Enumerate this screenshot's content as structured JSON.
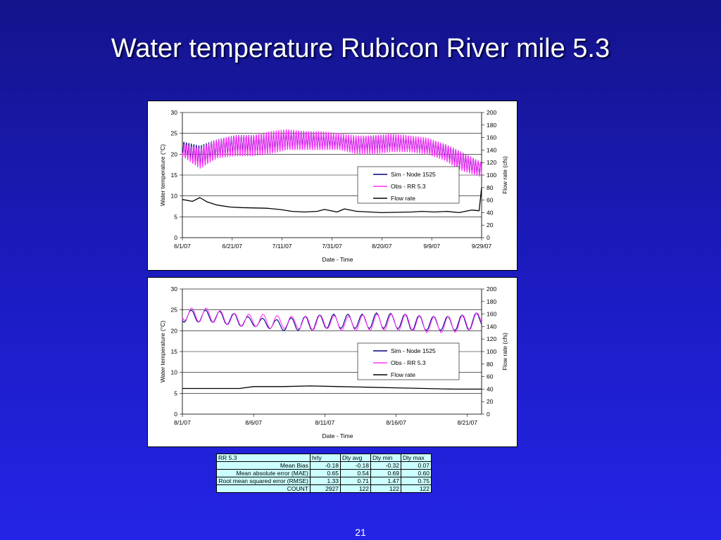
{
  "slide": {
    "title": "Water temperature Rubicon River mile 5.3",
    "page_number": "21",
    "background": "#1c1cc4"
  },
  "colors": {
    "sim": "#000080",
    "obs": "#ff33ff",
    "flow": "#000000"
  },
  "chart_data": [
    {
      "type": "line",
      "title": "",
      "xlabel": "Date - Time",
      "ylabel": "Water temperature (°C)",
      "y2label": "Flow rate (cfs)",
      "x_ticks": [
        "6/1/07",
        "6/21/07",
        "7/11/07",
        "7/31/07",
        "8/20/07",
        "9/9/07",
        "9/29/07"
      ],
      "xlim": [
        "2007-06-01",
        "2007-09-29"
      ],
      "ylim": [
        0,
        30
      ],
      "y_ticks": [
        0,
        5,
        10,
        15,
        20,
        25,
        30
      ],
      "y2lim": [
        0,
        200
      ],
      "y2_ticks": [
        0,
        20,
        40,
        60,
        80,
        100,
        120,
        140,
        160,
        180,
        200
      ],
      "grid": "horizontal",
      "legend_position": "center-right",
      "series": [
        {
          "name": "Sim - Node 1525",
          "axis": "left",
          "daily_min": {
            "x": [
              "2007-06-01",
              "2007-06-08",
              "2007-06-15",
              "2007-06-22",
              "2007-06-29",
              "2007-07-06",
              "2007-07-13",
              "2007-07-20",
              "2007-07-27",
              "2007-08-03",
              "2007-08-10",
              "2007-08-17",
              "2007-08-24",
              "2007-08-31",
              "2007-09-07",
              "2007-09-14",
              "2007-09-21",
              "2007-09-29"
            ],
            "y": [
              20.5,
              17.5,
              19.5,
              20.5,
              20.5,
              20.5,
              21.5,
              21.5,
              21.5,
              21.5,
              20.5,
              21.0,
              21.0,
              21.0,
              20.5,
              19.0,
              16.5,
              15.0
            ]
          },
          "daily_max": {
            "x": [
              "2007-06-01",
              "2007-06-08",
              "2007-06-15",
              "2007-06-22",
              "2007-06-29",
              "2007-07-06",
              "2007-07-13",
              "2007-07-20",
              "2007-07-27",
              "2007-08-03",
              "2007-08-10",
              "2007-08-17",
              "2007-08-24",
              "2007-08-31",
              "2007-09-07",
              "2007-09-14",
              "2007-09-21",
              "2007-09-29"
            ],
            "y": [
              23.0,
              22.0,
              23.5,
              24.5,
              24.5,
              25.0,
              25.5,
              25.5,
              25.0,
              24.5,
              24.0,
              24.5,
              24.5,
              24.0,
              23.5,
              22.5,
              20.5,
              18.0
            ]
          }
        },
        {
          "name": "Obs - RR 5.3",
          "axis": "left",
          "daily_min": {
            "x": [
              "2007-06-01",
              "2007-06-08",
              "2007-06-15",
              "2007-06-22",
              "2007-06-29",
              "2007-07-06",
              "2007-07-13",
              "2007-07-20",
              "2007-07-27",
              "2007-08-03",
              "2007-08-10",
              "2007-08-17",
              "2007-08-24",
              "2007-08-31",
              "2007-09-07",
              "2007-09-14",
              "2007-09-21",
              "2007-09-29"
            ],
            "y": [
              19.5,
              16.5,
              19.0,
              19.5,
              19.5,
              20.0,
              21.0,
              21.0,
              21.0,
              21.0,
              20.0,
              20.0,
              20.5,
              20.5,
              20.0,
              18.5,
              16.0,
              14.5
            ]
          },
          "daily_max": {
            "x": [
              "2007-06-01",
              "2007-06-08",
              "2007-06-15",
              "2007-06-22",
              "2007-06-29",
              "2007-07-06",
              "2007-07-13",
              "2007-07-20",
              "2007-07-27",
              "2007-08-03",
              "2007-08-10",
              "2007-08-17",
              "2007-08-24",
              "2007-08-31",
              "2007-09-07",
              "2007-09-14",
              "2007-09-21",
              "2007-09-29"
            ],
            "y": [
              22.5,
              21.5,
              23.5,
              24.5,
              24.5,
              25.5,
              26.0,
              25.5,
              25.5,
              25.0,
              24.5,
              24.5,
              25.0,
              24.5,
              24.0,
              22.5,
              20.5,
              18.0
            ]
          }
        },
        {
          "name": "Flow  rate",
          "axis": "right",
          "x": [
            "2007-06-01",
            "2007-06-05",
            "2007-06-08",
            "2007-06-11",
            "2007-06-15",
            "2007-06-20",
            "2007-06-25",
            "2007-07-05",
            "2007-07-10",
            "2007-07-15",
            "2007-07-20",
            "2007-07-25",
            "2007-07-28",
            "2007-08-02",
            "2007-08-05",
            "2007-08-10",
            "2007-08-20",
            "2007-09-01",
            "2007-09-05",
            "2007-09-10",
            "2007-09-15",
            "2007-09-20",
            "2007-09-25",
            "2007-09-28",
            "2007-09-29"
          ],
          "y": [
            61,
            58,
            64,
            57,
            52,
            49,
            48,
            47,
            45,
            42,
            41,
            42,
            45,
            41,
            46,
            42,
            40,
            41,
            42,
            41,
            42,
            40,
            44,
            43,
            80
          ]
        }
      ]
    },
    {
      "type": "line",
      "title": "",
      "xlabel": "Date - Time",
      "ylabel": "Water temperature (°C)",
      "y2label": "Flow rate (cfs)",
      "x_ticks": [
        "8/1/07",
        "8/6/07",
        "8/11/07",
        "8/16/07",
        "8/21/07"
      ],
      "xlim": [
        "2007-08-01",
        "2007-08-22"
      ],
      "ylim": [
        0,
        30
      ],
      "y_ticks": [
        0,
        5,
        10,
        15,
        20,
        25,
        30
      ],
      "y2lim": [
        0,
        200
      ],
      "y2_ticks": [
        0,
        20,
        40,
        60,
        80,
        100,
        120,
        140,
        160,
        180,
        200
      ],
      "grid": "horizontal",
      "legend_position": "center-right",
      "series": [
        {
          "name": "Sim - Node 1525",
          "axis": "left",
          "daily_min": {
            "x": [
              "2007-08-01",
              "2007-08-02",
              "2007-08-03",
              "2007-08-04",
              "2007-08-05",
              "2007-08-06",
              "2007-08-07",
              "2007-08-08",
              "2007-08-09",
              "2007-08-10",
              "2007-08-11",
              "2007-08-12",
              "2007-08-13",
              "2007-08-14",
              "2007-08-15",
              "2007-08-16",
              "2007-08-17",
              "2007-08-18",
              "2007-08-19",
              "2007-08-20",
              "2007-08-21",
              "2007-08-22"
            ],
            "y": [
              22.0,
              22.0,
              22.0,
              21.5,
              21.0,
              21.0,
              20.5,
              20.0,
              20.0,
              20.0,
              20.5,
              20.5,
              20.5,
              20.5,
              20.5,
              20.5,
              20.0,
              20.0,
              20.0,
              20.0,
              20.0,
              21.0
            ]
          },
          "daily_max": {
            "x": [
              "2007-08-01",
              "2007-08-02",
              "2007-08-03",
              "2007-08-04",
              "2007-08-05",
              "2007-08-06",
              "2007-08-07",
              "2007-08-08",
              "2007-08-09",
              "2007-08-10",
              "2007-08-11",
              "2007-08-12",
              "2007-08-13",
              "2007-08-14",
              "2007-08-15",
              "2007-08-16",
              "2007-08-17",
              "2007-08-18",
              "2007-08-19",
              "2007-08-20",
              "2007-08-21",
              "2007-08-22"
            ],
            "y": [
              25.0,
              25.0,
              25.0,
              24.5,
              24.0,
              23.0,
              23.0,
              22.5,
              23.5,
              23.5,
              24.0,
              24.0,
              24.0,
              24.0,
              24.5,
              24.0,
              24.0,
              23.5,
              23.5,
              23.5,
              24.0,
              24.5
            ]
          }
        },
        {
          "name": "Obs - RR 5.3",
          "axis": "left",
          "daily_min": {
            "x": [
              "2007-08-01",
              "2007-08-02",
              "2007-08-03",
              "2007-08-04",
              "2007-08-05",
              "2007-08-06",
              "2007-08-07",
              "2007-08-08",
              "2007-08-09",
              "2007-08-10",
              "2007-08-11",
              "2007-08-12",
              "2007-08-13",
              "2007-08-14",
              "2007-08-15",
              "2007-08-16",
              "2007-08-17",
              "2007-08-18",
              "2007-08-19",
              "2007-08-20",
              "2007-08-21",
              "2007-08-22"
            ],
            "y": [
              22.5,
              22.0,
              22.0,
              21.5,
              21.0,
              21.0,
              20.5,
              20.5,
              20.5,
              20.0,
              20.5,
              20.0,
              20.0,
              20.0,
              20.0,
              20.0,
              20.0,
              19.5,
              19.5,
              19.5,
              20.0,
              21.0
            ]
          },
          "daily_max": {
            "x": [
              "2007-08-01",
              "2007-08-02",
              "2007-08-03",
              "2007-08-04",
              "2007-08-05",
              "2007-08-06",
              "2007-08-07",
              "2007-08-08",
              "2007-08-09",
              "2007-08-10",
              "2007-08-11",
              "2007-08-12",
              "2007-08-13",
              "2007-08-14",
              "2007-08-15",
              "2007-08-16",
              "2007-08-17",
              "2007-08-18",
              "2007-08-19",
              "2007-08-20",
              "2007-08-21",
              "2007-08-22"
            ],
            "y": [
              25.5,
              25.5,
              25.5,
              24.5,
              24.0,
              24.0,
              24.0,
              23.5,
              23.5,
              23.5,
              24.0,
              23.5,
              23.5,
              24.0,
              24.0,
              24.0,
              24.0,
              23.5,
              23.5,
              23.5,
              24.0,
              24.5
            ]
          }
        },
        {
          "name": "Flow  rate",
          "axis": "right",
          "x": [
            "2007-08-01",
            "2007-08-05",
            "2007-08-06",
            "2007-08-08",
            "2007-08-10",
            "2007-08-12",
            "2007-08-14",
            "2007-08-16",
            "2007-08-18",
            "2007-08-20",
            "2007-08-22"
          ],
          "y": [
            41,
            41,
            44,
            44,
            45,
            44,
            43,
            42,
            41,
            40,
            40
          ]
        }
      ]
    }
  ],
  "stats_table": {
    "header": [
      "RR 5.3",
      "hrly",
      "Dly avg",
      "Dly min",
      "Dly max"
    ],
    "rows": [
      [
        "Mean Bias",
        "-0.18",
        "-0.18",
        "-0.32",
        "0.07"
      ],
      [
        "Mean absolute error (MAE)",
        "0.65",
        "0.54",
        "0.69",
        "0.60"
      ],
      [
        "Root mean squared error (RMSE)",
        "1.33",
        "0.71",
        "1.47",
        "0.75"
      ],
      [
        "COUNT",
        "2927",
        "122",
        "122",
        "122"
      ]
    ]
  }
}
